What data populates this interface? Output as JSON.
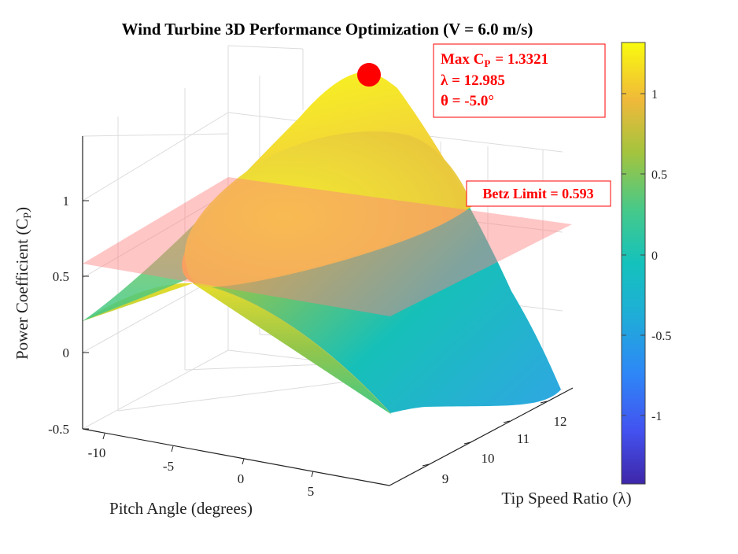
{
  "chart_data": {
    "type": "surface3d",
    "title": "Wind Turbine 3D Performance Optimization (V = 6.0 m/s)",
    "xlabel": "Pitch Angle (degrees)",
    "ylabel": "Tip Speed Ratio (λ)",
    "zlabel_main": "Power Coefficient (C",
    "zlabel_sub": "P",
    "zlabel_close": ")",
    "xlim": [
      -12,
      10
    ],
    "ylim": [
      8,
      13
    ],
    "zlim": [
      -0.5,
      1.4
    ],
    "x_ticks": [
      -10,
      -5,
      0,
      5
    ],
    "y_ticks": [
      9,
      10,
      11,
      12
    ],
    "z_ticks": [
      -0.5,
      0,
      0.5,
      1
    ],
    "x_tick_labels": [
      "-10",
      "-5",
      "0",
      "5"
    ],
    "y_tick_labels": [
      "9",
      "10",
      "11",
      "12"
    ],
    "z_tick_labels": [
      "-0.5",
      "0",
      "0.5",
      "1"
    ],
    "surface_corners": [
      {
        "pitch": -12,
        "lambda": 8,
        "cp": 0.2
      },
      {
        "pitch": 10,
        "lambda": 8,
        "cp": 0.23
      },
      {
        "pitch": 10,
        "lambda": 13,
        "cp": -0.25
      },
      {
        "pitch": -12,
        "lambda": 13,
        "cp": 0.85
      }
    ],
    "max_point": {
      "pitch": -5.0,
      "lambda": 12.985,
      "cp": 1.3321
    },
    "betz_limit": 0.593,
    "annotation": {
      "line1_main": "Max  C",
      "line1_sub": "P",
      "line1_value": "=  1.3321",
      "line2": "λ  =  12.985",
      "line3": "θ  =  -5.0°"
    },
    "betz_label": "Betz Limit = 0.593",
    "colorbar": {
      "colormap": "parula",
      "range": [
        -1.45,
        1.33
      ],
      "ticks": [
        -1,
        -0.5,
        0,
        0.5,
        1
      ],
      "tick_labels": [
        "-1",
        "-0.5",
        "0",
        "0.5",
        "1"
      ]
    },
    "grid": true,
    "colors": {
      "betz_plane": "#ff8080",
      "marker": "#ff0000",
      "annotation_border": "#ff0000"
    }
  }
}
